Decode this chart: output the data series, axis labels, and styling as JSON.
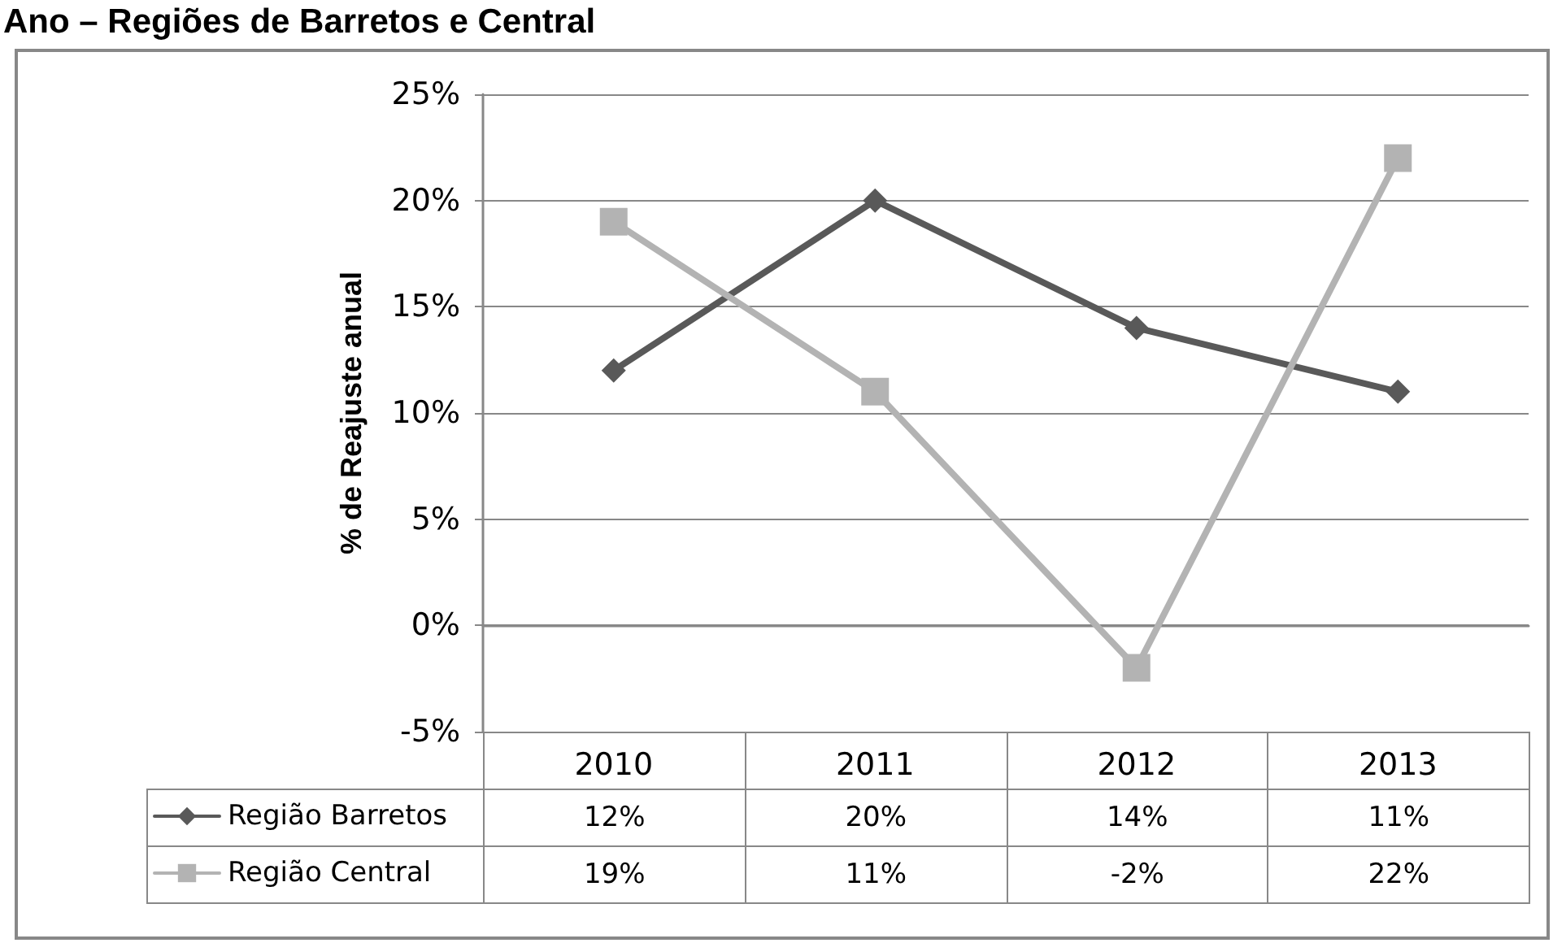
{
  "chart_data": {
    "type": "line",
    "title": "Ano – Regiões de Barretos e Central",
    "ylabel": "% de Reajuste anual",
    "categories": [
      "2010",
      "2011",
      "2012",
      "2013"
    ],
    "series": [
      {
        "name": "Região Barretos",
        "color": "#595959",
        "marker": "diamond",
        "values": [
          12,
          20,
          14,
          11
        ],
        "value_labels": [
          "12%",
          "20%",
          "14%",
          "11%"
        ]
      },
      {
        "name": "Região Central",
        "color": "#b3b3b3",
        "marker": "square",
        "values": [
          19,
          11,
          -2,
          22
        ],
        "value_labels": [
          "19%",
          "11%",
          "-2%",
          "22%"
        ]
      }
    ],
    "ylim": [
      -5,
      25
    ],
    "yticks": [
      {
        "value": -5,
        "label": "-5%"
      },
      {
        "value": 0,
        "label": "0%"
      },
      {
        "value": 5,
        "label": "5%"
      },
      {
        "value": 10,
        "label": "10%"
      },
      {
        "value": 15,
        "label": "15%"
      },
      {
        "value": 20,
        "label": "20%"
      },
      {
        "value": 25,
        "label": "25%"
      }
    ],
    "grid": "y",
    "legend": "bottom left",
    "line_style": "solid"
  }
}
